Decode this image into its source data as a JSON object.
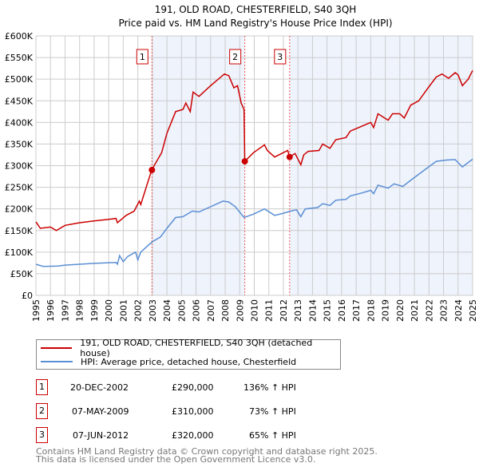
{
  "chart_data": {
    "type": "line",
    "title": "191, OLD ROAD, CHESTERFIELD, S40 3QH",
    "subtitle": "Price paid vs. HM Land Registry's House Price Index (HPI)",
    "xlabel": "",
    "ylabel": "",
    "xlim": [
      1995,
      2025
    ],
    "ylim": [
      0,
      600000
    ],
    "grid": true,
    "x_ticks": [
      "1995",
      "1996",
      "1997",
      "1998",
      "1999",
      "2000",
      "2001",
      "2002",
      "2003",
      "2004",
      "2005",
      "2006",
      "2007",
      "2008",
      "2009",
      "2010",
      "2011",
      "2012",
      "2013",
      "2014",
      "2015",
      "2016",
      "2017",
      "2018",
      "2019",
      "2020",
      "2021",
      "2022",
      "2023",
      "2024",
      "2025"
    ],
    "y_ticks": [
      {
        "v": 0,
        "label": "£0"
      },
      {
        "v": 50000,
        "label": "£50K"
      },
      {
        "v": 100000,
        "label": "£100K"
      },
      {
        "v": 150000,
        "label": "£150K"
      },
      {
        "v": 200000,
        "label": "£200K"
      },
      {
        "v": 250000,
        "label": "£250K"
      },
      {
        "v": 300000,
        "label": "£300K"
      },
      {
        "v": 350000,
        "label": "£350K"
      },
      {
        "v": 400000,
        "label": "£400K"
      },
      {
        "v": 450000,
        "label": "£450K"
      },
      {
        "v": 500000,
        "label": "£500K"
      },
      {
        "v": 550000,
        "label": "£550K"
      },
      {
        "v": 600000,
        "label": "£600K"
      }
    ],
    "series": [
      {
        "name": "191, OLD ROAD, CHESTERFIELD, S40 3QH (detached house)",
        "color": "#cc0000",
        "x": [
          1995,
          1995.3,
          1996,
          1996.4,
          1997,
          1998,
          1999,
          2000,
          2000.5,
          2000.6,
          2001.2,
          2001.75,
          2002.1,
          2002.2,
          2002.95,
          2003.64,
          2004.0,
          2004.6,
          2005.1,
          2005.3,
          2005.6,
          2005.8,
          2006.2,
          2007,
          2007.95,
          2008.25,
          2008.6,
          2008.85,
          2009.1,
          2009.3,
          2009.35,
          2009.95,
          2010.7,
          2010.9,
          2011.4,
          2012,
          2012.3,
          2012.43,
          2012.8,
          2013.2,
          2013.4,
          2013.7,
          2014.45,
          2014.7,
          2015.2,
          2015.6,
          2016.3,
          2016.6,
          2017.3,
          2018,
          2018.2,
          2018.5,
          2019.2,
          2019.5,
          2020,
          2020.3,
          2020.75,
          2021.3,
          2021.9,
          2022.5,
          2022.9,
          2023.35,
          2023.8,
          2024.0,
          2024.3,
          2024.7,
          2025
        ],
        "y": [
          170000,
          155000,
          158000,
          150000,
          162000,
          168000,
          172000,
          176000,
          178000,
          168000,
          185000,
          195000,
          218000,
          210000,
          290000,
          330000,
          375000,
          425000,
          430000,
          445000,
          425000,
          470000,
          460000,
          485000,
          512000,
          508000,
          480000,
          485000,
          445000,
          430000,
          310000,
          330000,
          348000,
          335000,
          320000,
          330000,
          335000,
          320000,
          328000,
          302000,
          325000,
          333000,
          335000,
          350000,
          340000,
          360000,
          365000,
          380000,
          390000,
          400000,
          388000,
          420000,
          405000,
          420000,
          420000,
          410000,
          440000,
          450000,
          478000,
          505000,
          512000,
          502000,
          515000,
          510000,
          485000,
          500000,
          520000
        ]
      },
      {
        "name": "HPI: Average price, detached house, Chesterfield",
        "color": "#5b8fd4",
        "x": [
          1995,
          1995.5,
          1996.5,
          1997,
          1999,
          2000.5,
          2000.6,
          2001,
          2002,
          2000.75,
          2001.3,
          2001.85,
          2002.2,
          2002.95,
          2003.55,
          2004,
          2004.6,
          2005.1,
          2005.75,
          2006.2,
          2007,
          2007.85,
          2008.25,
          2008.7,
          2009.3,
          2009.95,
          2010.7,
          2011.4,
          2012,
          2012.5,
          2012.9,
          2013.2,
          2013.5,
          2014.35,
          2014.7,
          2015.2,
          2015.6,
          2016.3,
          2016.6,
          2017.3,
          2018,
          2018.2,
          2018.5,
          2019.2,
          2019.6,
          2020.2,
          2020.7,
          2021.7,
          2022.5,
          2023.2,
          2023.8,
          2024.3,
          2025
        ],
        "y": [
          72000,
          67000,
          68000,
          70000,
          74000,
          76000,
          72000,
          78000,
          82000,
          92000,
          90000,
          100000,
          100000,
          123000,
          135000,
          155000,
          180000,
          182000,
          195000,
          193000,
          205000,
          218000,
          216000,
          205000,
          180000,
          188000,
          200000,
          185000,
          190000,
          195000,
          198000,
          182000,
          200000,
          203000,
          212000,
          208000,
          220000,
          222000,
          230000,
          236000,
          243000,
          235000,
          255000,
          248000,
          258000,
          252000,
          265000,
          290000,
          310000,
          313000,
          314000,
          297000,
          315000
        ]
      }
    ],
    "sales": [
      {
        "id": "1",
        "x": 2002.97,
        "price": 290000,
        "date": "20-DEC-2002",
        "price_label": "£290,000",
        "hpi": "136% ↑ HPI"
      },
      {
        "id": "2",
        "x": 2009.35,
        "price": 310000,
        "date": "07-MAY-2009",
        "price_label": "£310,000",
        "hpi": "73% ↑ HPI"
      },
      {
        "id": "3",
        "x": 2012.43,
        "price": 320000,
        "date": "07-JUN-2012",
        "price_label": "£320,000",
        "hpi": "65% ↑ HPI"
      }
    ],
    "legend_position": "below"
  },
  "footer": {
    "line1": "Contains HM Land Registry data © Crown copyright and database right 2025.",
    "line2": "This data is licensed under the Open Government Licence v3.0."
  }
}
